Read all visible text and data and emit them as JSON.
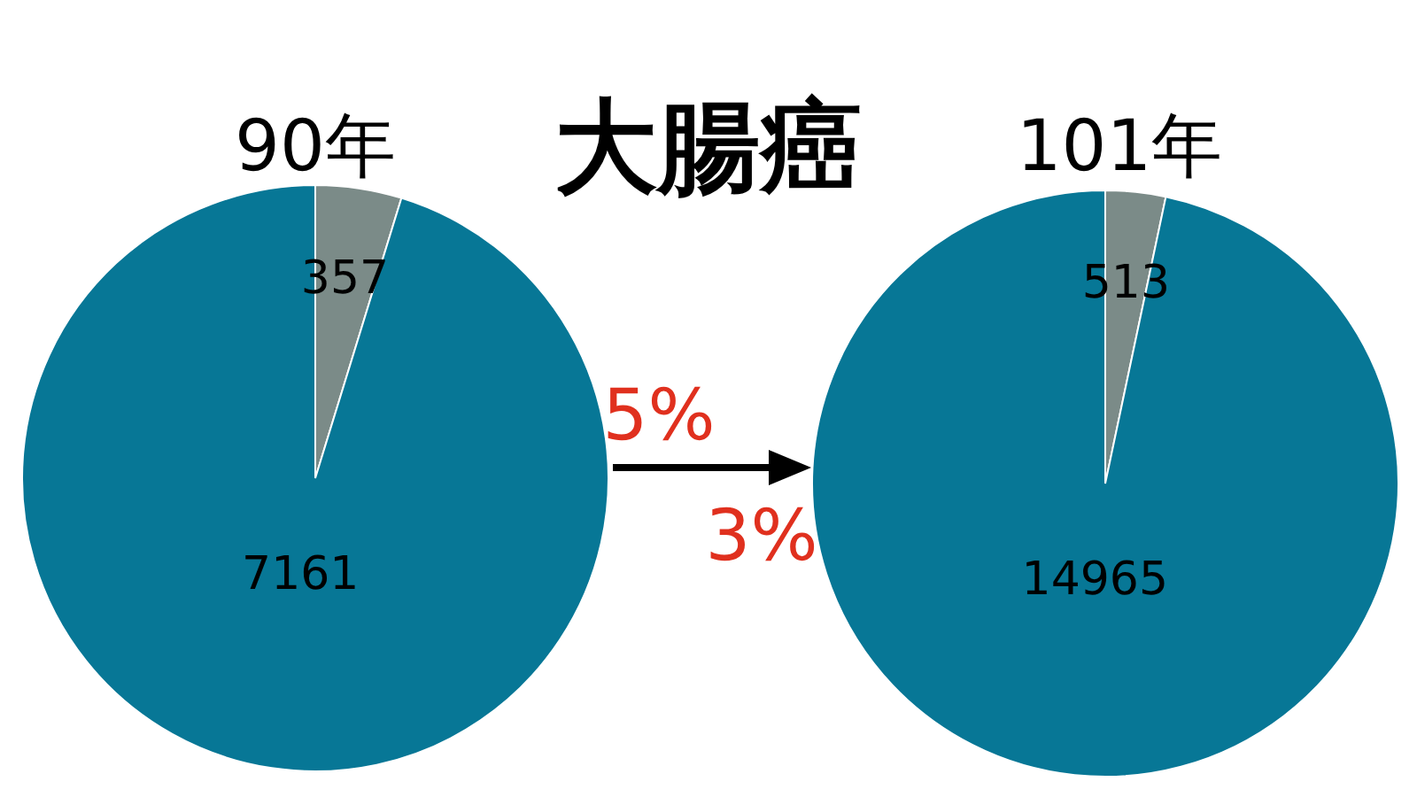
{
  "chart_data": [
    {
      "type": "pie",
      "title": "90年",
      "categories": [
        null,
        null
      ],
      "values": [
        357,
        7161
      ],
      "colors": [
        "#7b8b88",
        "#077796"
      ],
      "data_labels": true,
      "legend": false,
      "annotations": [
        "大腸癌",
        "5%"
      ]
    },
    {
      "type": "pie",
      "title": "101年",
      "categories": [
        null,
        null
      ],
      "values": [
        513,
        14965
      ],
      "colors": [
        "#7b8b88",
        "#077796"
      ],
      "data_labels": true,
      "legend": false,
      "annotations": [
        "3%"
      ]
    }
  ]
}
